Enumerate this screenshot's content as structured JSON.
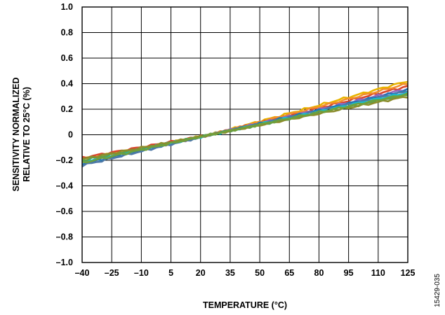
{
  "figure_id": "15429-035",
  "chart_data": {
    "type": "line",
    "xlabel": "TEMPERATURE (°C)",
    "ylabel_lines": [
      "SENSITIVITY NORMALIZED",
      "RELATIVE TO 25°C (%)"
    ],
    "xlim": [
      -40,
      125
    ],
    "ylim": [
      -1.0,
      1.0
    ],
    "x_tick_labels": [
      "–40",
      "–25",
      "–10",
      "5",
      "20",
      "35",
      "50",
      "65",
      "80",
      "95",
      "110",
      "125"
    ],
    "y_tick_labels": [
      "1.0",
      "0.8",
      "0.6",
      "0.4",
      "0.2",
      "0",
      "–0.2",
      "–0.4",
      "–0.6",
      "–0.8",
      "–1.0"
    ],
    "grid": true,
    "legend": "none",
    "series": [
      {
        "color": "#e8b400",
        "x": [
          -40,
          25,
          125
        ],
        "y": [
          -0.19,
          0.0,
          0.42
        ]
      },
      {
        "color": "#d9452b",
        "x": [
          -40,
          25,
          125
        ],
        "y": [
          -0.18,
          0.0,
          0.38
        ]
      },
      {
        "color": "#f28e2b",
        "x": [
          -40,
          25,
          125
        ],
        "y": [
          -0.2,
          0.0,
          0.4
        ]
      },
      {
        "color": "#9467bd",
        "x": [
          -40,
          25,
          125
        ],
        "y": [
          -0.22,
          0.0,
          0.36
        ]
      },
      {
        "color": "#1f77b4",
        "x": [
          -40,
          25,
          125
        ],
        "y": [
          -0.23,
          0.0,
          0.35
        ]
      },
      {
        "color": "#4e79a7",
        "x": [
          -40,
          25,
          125
        ],
        "y": [
          -0.24,
          0.0,
          0.34
        ]
      },
      {
        "color": "#17becf",
        "x": [
          -40,
          25,
          125
        ],
        "y": [
          -0.21,
          0.0,
          0.33
        ]
      },
      {
        "color": "#59a14f",
        "x": [
          -40,
          25,
          125
        ],
        "y": [
          -0.2,
          0.0,
          0.31
        ]
      },
      {
        "color": "#8c8c2c",
        "x": [
          -40,
          25,
          125
        ],
        "y": [
          -0.19,
          0.0,
          0.3
        ]
      },
      {
        "color": "#6fa03c",
        "x": [
          -40,
          25,
          125
        ],
        "y": [
          -0.22,
          0.0,
          0.32
        ]
      }
    ]
  }
}
